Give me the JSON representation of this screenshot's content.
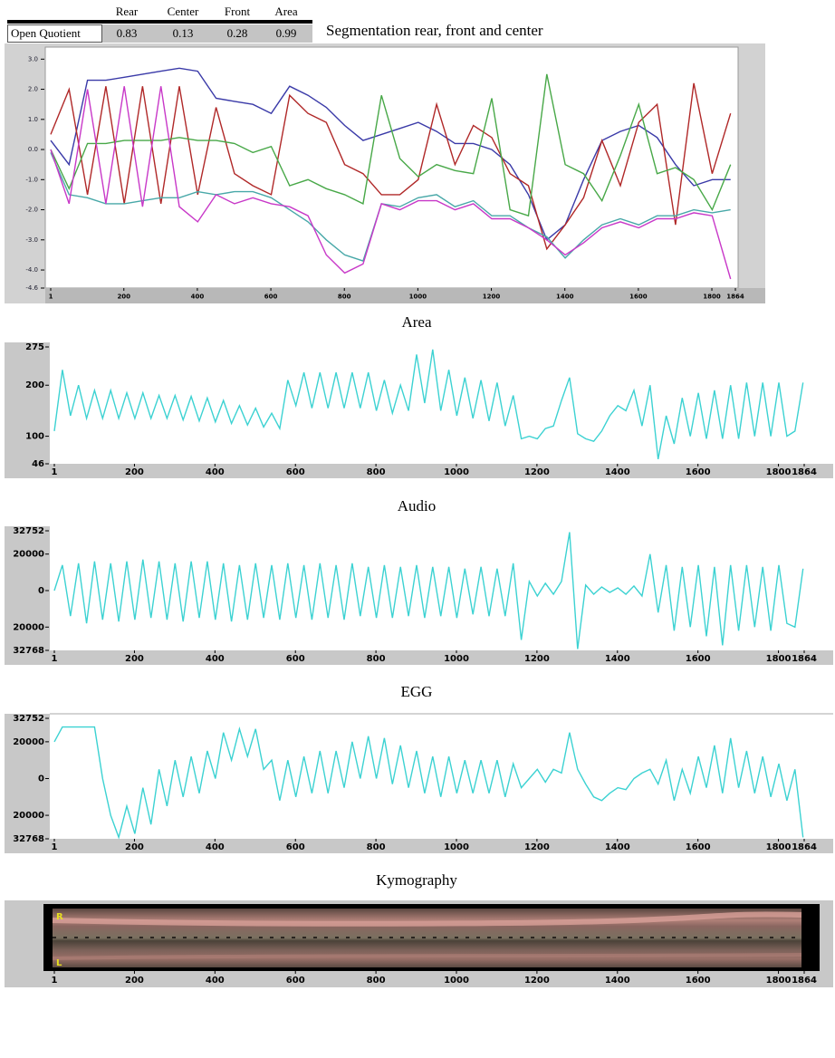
{
  "table": {
    "header": [
      "Rear",
      "Center",
      "Front",
      "Area"
    ],
    "row_label": "Open Quotient",
    "values": [
      0.83,
      0.13,
      0.28,
      0.99
    ]
  },
  "chart_data": [
    {
      "type": "line",
      "title": "Segmentation rear, front and center",
      "x": [
        1,
        51,
        101,
        151,
        201,
        251,
        301,
        351,
        401,
        451,
        501,
        551,
        601,
        651,
        701,
        751,
        801,
        851,
        901,
        951,
        1001,
        1051,
        1101,
        1151,
        1201,
        1251,
        1301,
        1351,
        1401,
        1451,
        1501,
        1551,
        1601,
        1651,
        1701,
        1751,
        1801,
        1851
      ],
      "series": [
        {
          "color": "#3a3aa8",
          "values": [
            0.3,
            -0.5,
            2.3,
            2.3,
            2.4,
            2.5,
            2.6,
            2.7,
            2.6,
            1.7,
            1.6,
            1.5,
            1.2,
            2.1,
            1.8,
            1.4,
            0.8,
            0.3,
            0.5,
            0.7,
            0.9,
            0.6,
            0.2,
            0.2,
            0.0,
            -0.5,
            -1.5,
            -3.0,
            -2.5,
            -1.0,
            0.3,
            0.6,
            0.8,
            0.4,
            -0.5,
            -1.2,
            -1.0,
            -1.0
          ]
        },
        {
          "color": "#b02828",
          "values": [
            0.5,
            2.0,
            -1.5,
            2.1,
            -1.8,
            2.1,
            -1.8,
            2.1,
            -1.5,
            1.4,
            -0.8,
            -1.2,
            -1.5,
            1.8,
            1.2,
            0.9,
            -0.5,
            -0.8,
            -1.5,
            -1.5,
            -1.0,
            1.5,
            -0.5,
            0.8,
            0.4,
            -0.8,
            -1.2,
            -3.3,
            -2.5,
            -1.6,
            0.3,
            -1.2,
            0.9,
            1.5,
            -2.5,
            2.2,
            -0.8,
            1.2
          ]
        },
        {
          "color": "#48a848",
          "values": [
            0.0,
            -1.3,
            0.2,
            0.2,
            0.3,
            0.3,
            0.3,
            0.4,
            0.3,
            0.3,
            0.2,
            -0.1,
            0.1,
            -1.2,
            -1.0,
            -1.3,
            -1.5,
            -1.8,
            1.8,
            -0.3,
            -0.9,
            -0.5,
            -0.7,
            -0.8,
            1.7,
            -2.0,
            -2.2,
            2.5,
            -0.5,
            -0.8,
            -1.7,
            -0.2,
            1.5,
            -0.8,
            -0.6,
            -1.0,
            -2.0,
            -0.5
          ]
        },
        {
          "color": "#48a8a8",
          "values": [
            -0.1,
            -1.5,
            -1.6,
            -1.8,
            -1.8,
            -1.7,
            -1.6,
            -1.6,
            -1.4,
            -1.5,
            -1.4,
            -1.4,
            -1.6,
            -2.0,
            -2.4,
            -3.0,
            -3.5,
            -3.7,
            -1.8,
            -1.9,
            -1.6,
            -1.5,
            -1.9,
            -1.7,
            -2.2,
            -2.2,
            -2.6,
            -2.9,
            -3.6,
            -3.0,
            -2.5,
            -2.3,
            -2.5,
            -2.2,
            -2.2,
            -2.0,
            -2.1,
            -2.0
          ]
        },
        {
          "color": "#c838c8",
          "values": [
            0.0,
            -1.8,
            2.0,
            -1.8,
            2.1,
            -1.9,
            2.1,
            -1.9,
            -2.4,
            -1.5,
            -1.8,
            -1.6,
            -1.8,
            -1.9,
            -2.2,
            -3.5,
            -4.1,
            -3.8,
            -1.8,
            -2.0,
            -1.7,
            -1.7,
            -2.0,
            -1.8,
            -2.3,
            -2.3,
            -2.6,
            -3.0,
            -3.5,
            -3.1,
            -2.6,
            -2.4,
            -2.6,
            -2.3,
            -2.3,
            -2.1,
            -2.2,
            -4.3
          ]
        }
      ],
      "xlim": [
        1,
        1864
      ],
      "xticks": [
        1,
        200,
        400,
        600,
        800,
        1000,
        1200,
        1400,
        1600,
        1800,
        1864
      ],
      "ylim": [
        -4.6,
        3.4
      ],
      "yticks": [
        {
          "value": 3,
          "label": "3.0"
        },
        {
          "value": 2,
          "label": "2.0"
        },
        {
          "value": 1,
          "label": "1.0"
        },
        {
          "value": 0,
          "label": "0.0"
        },
        {
          "value": -1,
          "label": "-1.0"
        },
        {
          "value": -2,
          "label": "-2.0"
        },
        {
          "value": -3,
          "label": "-3.0"
        },
        {
          "value": -4,
          "label": "-4.0"
        },
        {
          "value": -4.6,
          "label": "-4.6"
        }
      ]
    },
    {
      "type": "line",
      "title": "Area",
      "color": "#3cd2d2",
      "x": [
        1,
        21,
        41,
        61,
        81,
        101,
        121,
        141,
        161,
        181,
        201,
        221,
        241,
        261,
        281,
        301,
        321,
        341,
        361,
        381,
        401,
        421,
        441,
        461,
        481,
        501,
        521,
        541,
        561,
        581,
        601,
        621,
        641,
        661,
        681,
        701,
        721,
        741,
        761,
        781,
        801,
        821,
        841,
        861,
        881,
        901,
        921,
        941,
        961,
        981,
        1001,
        1021,
        1041,
        1061,
        1081,
        1101,
        1121,
        1141,
        1161,
        1181,
        1201,
        1221,
        1241,
        1261,
        1281,
        1301,
        1321,
        1341,
        1361,
        1381,
        1401,
        1421,
        1441,
        1461,
        1481,
        1501,
        1521,
        1541,
        1561,
        1581,
        1601,
        1621,
        1641,
        1661,
        1681,
        1701,
        1721,
        1741,
        1761,
        1781,
        1801,
        1821,
        1841,
        1861
      ],
      "values": [
        110,
        230,
        140,
        200,
        135,
        190,
        135,
        190,
        135,
        185,
        135,
        185,
        135,
        180,
        135,
        180,
        132,
        178,
        130,
        175,
        128,
        170,
        125,
        160,
        122,
        155,
        118,
        145,
        115,
        210,
        160,
        225,
        155,
        225,
        155,
        225,
        155,
        225,
        155,
        225,
        150,
        210,
        145,
        200,
        150,
        260,
        165,
        270,
        150,
        230,
        140,
        215,
        135,
        210,
        130,
        205,
        120,
        180,
        95,
        100,
        95,
        115,
        120,
        170,
        215,
        105,
        95,
        90,
        110,
        140,
        160,
        150,
        190,
        120,
        200,
        55,
        140,
        85,
        175,
        100,
        185,
        95,
        190,
        95,
        200,
        95,
        205,
        100,
        205,
        100,
        205,
        100,
        110,
        205
      ],
      "xlim": [
        1,
        1864
      ],
      "xticks": [
        1,
        200,
        400,
        600,
        800,
        1000,
        1200,
        1400,
        1600,
        1800,
        1864
      ],
      "ylim": [
        46,
        275
      ],
      "yticks": [
        275,
        200,
        100,
        46
      ]
    },
    {
      "type": "line",
      "title": "Audio",
      "color": "#3cd2d2",
      "x": [
        1,
        21,
        41,
        61,
        81,
        101,
        121,
        141,
        161,
        181,
        201,
        221,
        241,
        261,
        281,
        301,
        321,
        341,
        361,
        381,
        401,
        421,
        441,
        461,
        481,
        501,
        521,
        541,
        561,
        581,
        601,
        621,
        641,
        661,
        681,
        701,
        721,
        741,
        761,
        781,
        801,
        821,
        841,
        861,
        881,
        901,
        921,
        941,
        961,
        981,
        1001,
        1021,
        1041,
        1061,
        1081,
        1101,
        1121,
        1141,
        1161,
        1181,
        1201,
        1221,
        1241,
        1261,
        1281,
        1301,
        1321,
        1341,
        1361,
        1381,
        1401,
        1421,
        1441,
        1461,
        1481,
        1501,
        1521,
        1541,
        1561,
        1581,
        1601,
        1621,
        1641,
        1661,
        1681,
        1701,
        1721,
        1741,
        1761,
        1781,
        1801,
        1821,
        1841,
        1861
      ],
      "values": [
        0,
        14000,
        -14000,
        15000,
        -18000,
        16000,
        -16000,
        15000,
        -17000,
        16000,
        -16000,
        17000,
        -15000,
        16000,
        -16000,
        15000,
        -17000,
        16000,
        -15000,
        16000,
        -16000,
        15000,
        -17000,
        14000,
        -16000,
        15000,
        -15000,
        14000,
        -16000,
        15000,
        -15000,
        14000,
        -16000,
        15000,
        -15000,
        14000,
        -16000,
        15000,
        -14000,
        13000,
        -15000,
        14000,
        -15000,
        13000,
        -14000,
        14000,
        -15000,
        13000,
        -14000,
        13000,
        -15000,
        12000,
        -13000,
        13000,
        -14000,
        12000,
        -14000,
        15000,
        -27000,
        5000,
        -3000,
        4000,
        -2000,
        5000,
        32000,
        -32000,
        3000,
        -2000,
        2000,
        -1000,
        1500,
        -2000,
        2500,
        -3000,
        20000,
        -12000,
        14000,
        -22000,
        13000,
        -20000,
        14000,
        -25000,
        13000,
        -30000,
        14000,
        -22000,
        14000,
        -20000,
        13000,
        -22000,
        14000,
        -18000,
        -20000,
        12000
      ],
      "xlim": [
        1,
        1864
      ],
      "xticks": [
        1,
        200,
        400,
        600,
        800,
        1000,
        1200,
        1400,
        1600,
        1800,
        1864
      ],
      "ylim": [
        -32768,
        32752
      ],
      "yticks": [
        32752,
        20000,
        0,
        {
          "value": -20000,
          "label": "20000"
        },
        {
          "value": -32768,
          "label": "32768"
        }
      ]
    },
    {
      "type": "line",
      "title": "EGG",
      "color": "#3cd2d2",
      "x": [
        1,
        21,
        41,
        61,
        81,
        101,
        121,
        141,
        161,
        181,
        201,
        221,
        241,
        261,
        281,
        301,
        321,
        341,
        361,
        381,
        401,
        421,
        441,
        461,
        481,
        501,
        521,
        541,
        561,
        581,
        601,
        621,
        641,
        661,
        681,
        701,
        721,
        741,
        761,
        781,
        801,
        821,
        841,
        861,
        881,
        901,
        921,
        941,
        961,
        981,
        1001,
        1021,
        1041,
        1061,
        1081,
        1101,
        1121,
        1141,
        1161,
        1181,
        1201,
        1221,
        1241,
        1261,
        1281,
        1301,
        1321,
        1341,
        1361,
        1381,
        1401,
        1421,
        1441,
        1461,
        1481,
        1501,
        1521,
        1541,
        1561,
        1581,
        1601,
        1621,
        1641,
        1661,
        1681,
        1701,
        1721,
        1741,
        1761,
        1781,
        1801,
        1821,
        1841,
        1861
      ],
      "values": [
        20000,
        28000,
        28000,
        28000,
        28000,
        28000,
        0,
        -20000,
        -32000,
        -15000,
        -30000,
        -5000,
        -25000,
        5000,
        -15000,
        10000,
        -10000,
        12000,
        -8000,
        15000,
        0,
        25000,
        10000,
        27000,
        12000,
        27000,
        5000,
        10000,
        -12000,
        10000,
        -10000,
        12000,
        -8000,
        15000,
        -8000,
        15000,
        -5000,
        20000,
        0,
        23000,
        0,
        22000,
        -3000,
        18000,
        -5000,
        15000,
        -8000,
        12000,
        -10000,
        12000,
        -8000,
        10000,
        -8000,
        10000,
        -8000,
        10000,
        -10000,
        8000,
        -5000,
        0,
        5000,
        -2000,
        5000,
        3000,
        25000,
        5000,
        -3000,
        -10000,
        -12000,
        -8000,
        -5000,
        -6000,
        0,
        3000,
        5000,
        -3000,
        10000,
        -12000,
        5000,
        -8000,
        12000,
        -5000,
        18000,
        -8000,
        22000,
        -5000,
        15000,
        -8000,
        12000,
        -10000,
        8000,
        -12000,
        5000,
        -32000
      ],
      "xlim": [
        1,
        1864
      ],
      "xticks": [
        1,
        200,
        400,
        600,
        800,
        1000,
        1200,
        1400,
        1600,
        1800,
        1864
      ],
      "ylim": [
        -32768,
        32752
      ],
      "yticks": [
        32752,
        20000,
        0,
        {
          "value": -20000,
          "label": "20000"
        },
        {
          "value": -32768,
          "label": "32768"
        }
      ]
    },
    {
      "type": "kymograph",
      "title": "Kymography",
      "labels": [
        "R",
        "L"
      ],
      "xlim": [
        1,
        1864
      ],
      "xticks": [
        1,
        200,
        400,
        600,
        800,
        1000,
        1200,
        1400,
        1600,
        1800,
        1864
      ]
    }
  ]
}
